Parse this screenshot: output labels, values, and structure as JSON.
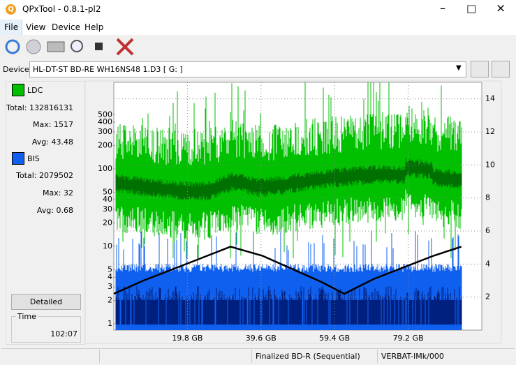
{
  "window": {
    "title": "QPxTool - 0.8.1-pl2"
  },
  "menu": [
    "File",
    "View",
    "Device",
    "Help"
  ],
  "device": {
    "label": "Device:",
    "value": "HL-DT-ST BD-RE  WH16NS48  1.D3 [ G: ]"
  },
  "stats": {
    "ldc": {
      "name": "LDC",
      "total_label": "Total:",
      "total": 132816131,
      "max_label": "Max:",
      "max": 1517,
      "avg_label": "Avg:",
      "avg": 43.48
    },
    "bis": {
      "name": "BIS",
      "total_label": "Total:",
      "total": 2079502,
      "max_label": "Max:",
      "max": 32,
      "avg_label": "Avg:",
      "avg": 0.68
    }
  },
  "detailed_button": "Detailed",
  "time": {
    "label": "Time",
    "value": "102:07"
  },
  "status": {
    "disc": "Finalized BD-R (Sequential)",
    "media": "VERBAT-IMk/000"
  },
  "chart_data": {
    "type": "line",
    "yscale": "log",
    "ylim": [
      0.83,
      1310
    ],
    "yticks": [
      1,
      2,
      3,
      4,
      5,
      10,
      20,
      30,
      40,
      50,
      100,
      200,
      300,
      400,
      500
    ],
    "y2lim": [
      0,
      15
    ],
    "y2ticks": [
      2,
      4,
      6,
      8,
      10,
      12,
      14
    ],
    "xlim": [
      0,
      99
    ],
    "xticks": [
      {
        "value": 19.8,
        "label": "19.8 GB"
      },
      {
        "value": 39.6,
        "label": "39.6 GB"
      },
      {
        "value": 59.4,
        "label": "59.4 GB"
      },
      {
        "value": 79.2,
        "label": "79.2 GB"
      }
    ],
    "grid": true,
    "series": [
      {
        "color": "#000000",
        "axis": "y2",
        "x": [
          0,
          8,
          16,
          24,
          31.4,
          40,
          48,
          56,
          62,
          70,
          78,
          86,
          93.5
        ],
        "values": [
          2.2,
          3.0,
          3.7,
          4.4,
          5.05,
          4.5,
          3.7,
          2.9,
          2.2,
          3.1,
          3.8,
          4.5,
          5.05
        ]
      }
    ]
  }
}
